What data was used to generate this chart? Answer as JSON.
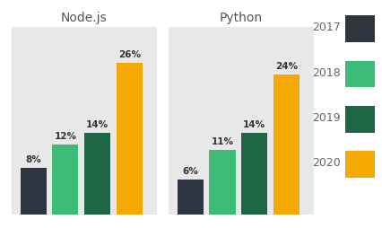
{
  "groups": [
    "Node.js",
    "Python"
  ],
  "years": [
    "2017",
    "2018",
    "2019",
    "2020"
  ],
  "values": {
    "Node.js": [
      8,
      12,
      14,
      26
    ],
    "Python": [
      6,
      11,
      14,
      24
    ]
  },
  "colors": {
    "2017": "#2e3440",
    "2018": "#3dbb78",
    "2019": "#1e6644",
    "2020": "#f5a800"
  },
  "background_color": "#e8e8e8",
  "fig_background": "#ffffff",
  "ylim": [
    0,
    32
  ],
  "label_fontsize": 7.5,
  "title_fontsize": 10,
  "legend_fontsize": 9,
  "legend_years": [
    "2017",
    "2018",
    "2019",
    "2020"
  ]
}
